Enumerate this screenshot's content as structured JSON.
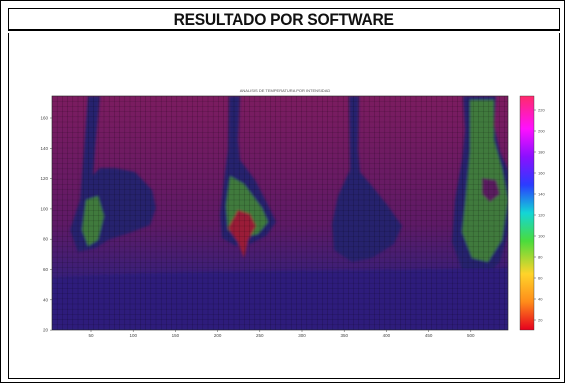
{
  "header": {
    "title": "RESULTADO POR SOFTWARE"
  },
  "chart_data": {
    "type": "heatmap",
    "title": "ANALISIS DE TEMPERATURA POR INTENSIDAD",
    "xlabel": "",
    "ylabel": "",
    "x_ticks": [
      "50",
      "100",
      "150",
      "200",
      "250",
      "300",
      "350",
      "400",
      "450",
      "500"
    ],
    "y_ticks": [
      "160",
      "140",
      "120",
      "100",
      "80",
      "60",
      "40",
      "20"
    ],
    "colorbar_ticks": [
      "220",
      "200",
      "180",
      "160",
      "140",
      "120",
      "100",
      "80",
      "60",
      "40",
      "20"
    ],
    "colorscale": [
      "#e6001e",
      "#ff8c1a",
      "#ffd42a",
      "#4adc3c",
      "#13d6d6",
      "#2a3cff",
      "#8a10ff",
      "#ff10ff",
      "#ff2a6a"
    ],
    "background_color": "#7a1a5e",
    "low_region_color": "#2c1f78",
    "shape_color": "#25226e",
    "hot_color": "#3f7a3e",
    "grid": true
  }
}
